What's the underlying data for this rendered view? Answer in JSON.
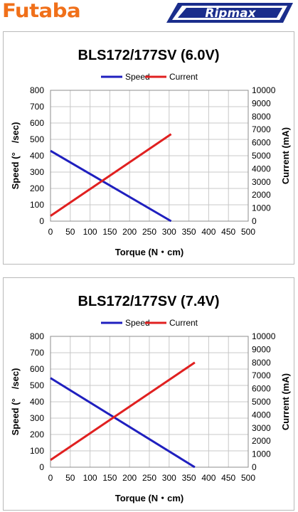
{
  "header": {
    "futaba_logo": "Futaba",
    "ripmax_logo": "Ripmax"
  },
  "colors": {
    "speed": "#1f1fbf",
    "current": "#e02020",
    "futaba": "#f0701a",
    "ripmax": "#1a2d8c"
  },
  "chart_data": [
    {
      "type": "line",
      "title": "BLS172/177SV (6.0V)",
      "xlabel": "Torque (N・cm)",
      "ylabel": "Speed (°　/sec)",
      "y2label": "Current (mA)",
      "xlim": [
        0,
        500
      ],
      "ylim": [
        0,
        800
      ],
      "y2lim": [
        0,
        10000
      ],
      "xticks": [
        "0",
        "50",
        "100",
        "150",
        "200",
        "250",
        "300",
        "350",
        "400",
        "450",
        "500"
      ],
      "yticks": [
        "0",
        "100",
        "200",
        "300",
        "400",
        "500",
        "600",
        "700",
        "800"
      ],
      "y2ticks": [
        "0",
        "1000",
        "2000",
        "3000",
        "4000",
        "5000",
        "6000",
        "7000",
        "8000",
        "9000",
        "10000"
      ],
      "grid": true,
      "legend": "top-center",
      "series": [
        {
          "name": "Speed",
          "axis": "left",
          "x": [
            0,
            305
          ],
          "y": [
            430,
            0
          ]
        },
        {
          "name": "Current",
          "axis": "right",
          "x": [
            0,
            305
          ],
          "y": [
            400,
            6650
          ]
        }
      ]
    },
    {
      "type": "line",
      "title": "BLS172/177SV (7.4V)",
      "xlabel": "Torque (N・cm)",
      "ylabel": "Speed (°　/sec)",
      "y2label": "Current (mA)",
      "xlim": [
        0,
        500
      ],
      "ylim": [
        0,
        800
      ],
      "y2lim": [
        0,
        10000
      ],
      "xticks": [
        "0",
        "50",
        "100",
        "150",
        "200",
        "250",
        "300",
        "350",
        "400",
        "450",
        "500"
      ],
      "yticks": [
        "0",
        "100",
        "200",
        "300",
        "400",
        "500",
        "600",
        "700",
        "800"
      ],
      "y2ticks": [
        "0",
        "1000",
        "2000",
        "3000",
        "4000",
        "5000",
        "6000",
        "7000",
        "8000",
        "9000",
        "10000"
      ],
      "grid": true,
      "legend": "top-center",
      "series": [
        {
          "name": "Speed",
          "axis": "left",
          "x": [
            0,
            365
          ],
          "y": [
            545,
            0
          ]
        },
        {
          "name": "Current",
          "axis": "right",
          "x": [
            0,
            365
          ],
          "y": [
            550,
            8000
          ]
        }
      ]
    }
  ]
}
